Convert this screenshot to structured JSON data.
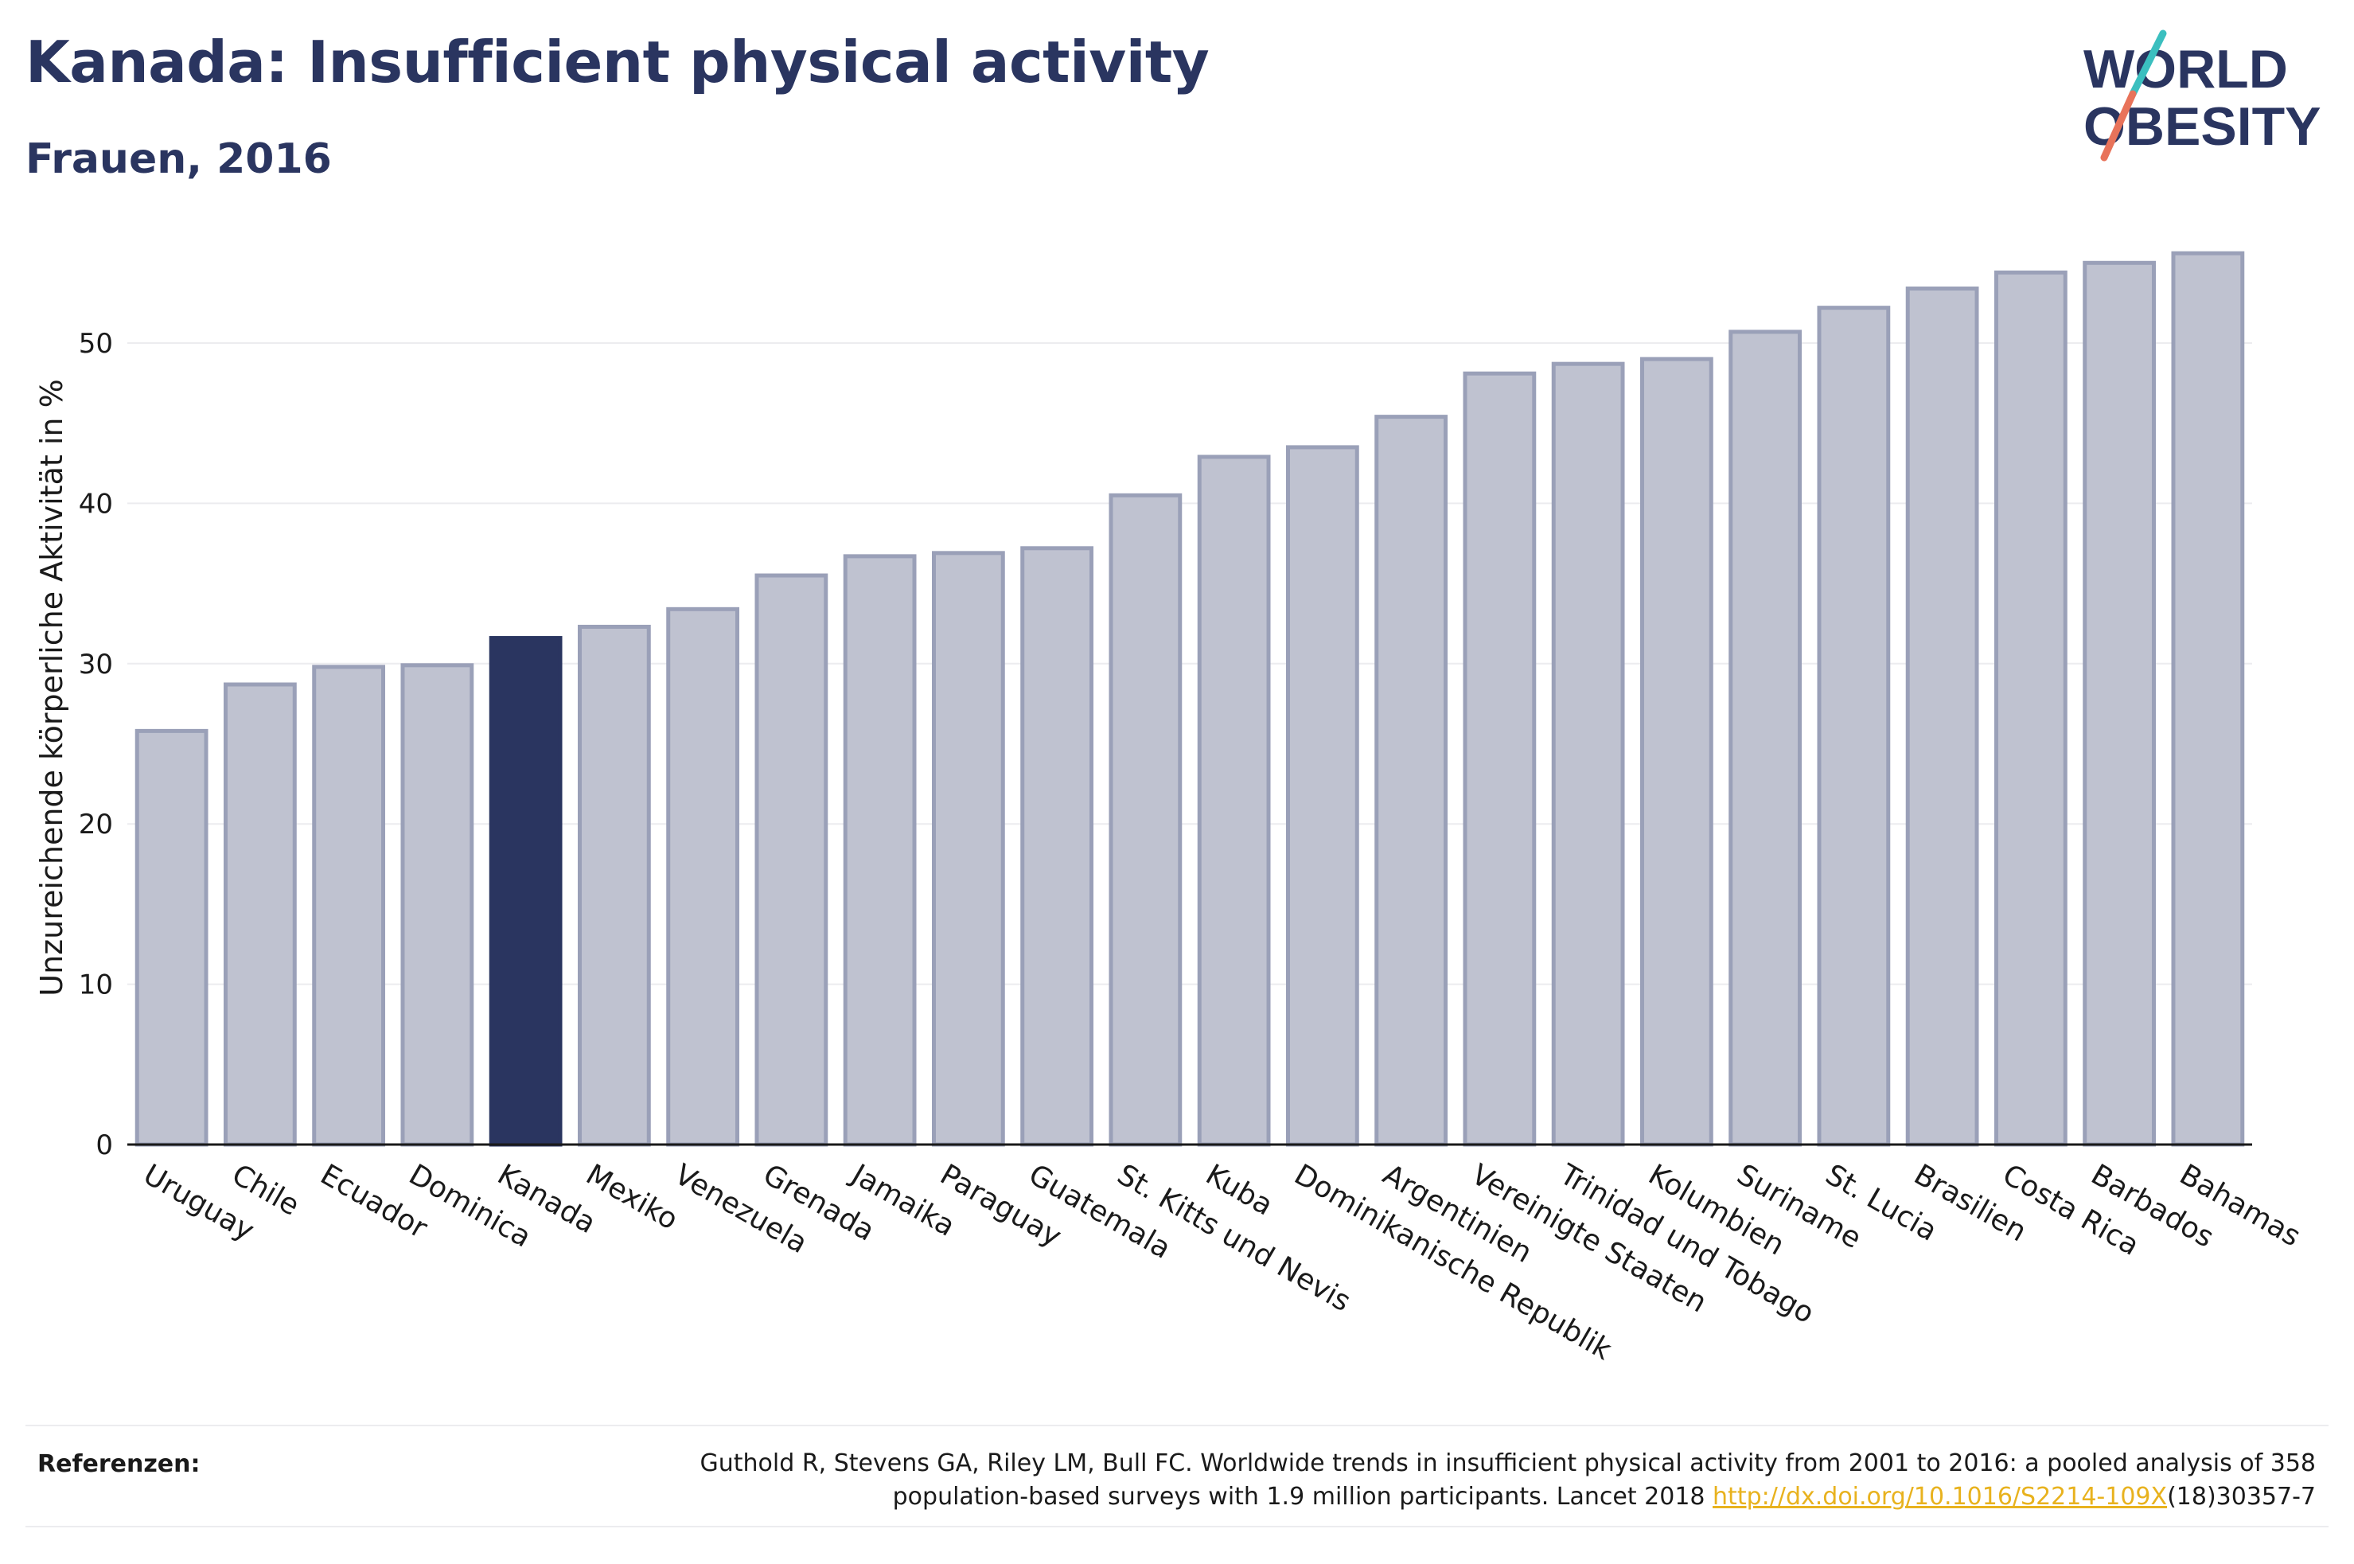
{
  "header": {
    "title": "Kanada: Insufficient physical activity",
    "subtitle": "Frauen, 2016"
  },
  "logo": {
    "line1": "WORLD",
    "line2": "OBESITY",
    "colors": {
      "text": "#2a3560",
      "slash_teal": "#3bbfbf",
      "slash_coral": "#e8735a"
    }
  },
  "chart_data": {
    "type": "bar",
    "ylabel": "Unzureichende körperliche Aktivität in %",
    "ylim": [
      0,
      57
    ],
    "yticks": [
      0,
      10,
      20,
      30,
      40,
      50
    ],
    "grid": true,
    "highlight": "Kanada",
    "colors": {
      "bar": "#bfc2d0",
      "bar_edge": "#9aa0b8",
      "highlight": "#2a3560"
    },
    "categories": [
      "Uruguay",
      "Chile",
      "Ecuador",
      "Dominica",
      "Kanada",
      "Mexiko",
      "Venezuela",
      "Grenada",
      "Jamaika",
      "Paraguay",
      "Guatemala",
      "St. Kitts und Nevis",
      "Kuba",
      "Dominikanische Republik",
      "Argentinien",
      "Vereinigte Staaten",
      "Trinidad und Tobago",
      "Kolumbien",
      "Suriname",
      "St. Lucia",
      "Brasilien",
      "Costa Rica",
      "Barbados",
      "Bahamas"
    ],
    "values": [
      25.8,
      28.7,
      29.8,
      29.9,
      31.6,
      32.3,
      33.4,
      35.5,
      36.7,
      36.9,
      37.2,
      40.5,
      42.9,
      43.5,
      45.4,
      48.1,
      48.7,
      49.0,
      50.7,
      52.2,
      53.4,
      54.4,
      55.0,
      55.6
    ]
  },
  "references": {
    "label": "Referenzen:",
    "text_line1": "Guthold R, Stevens GA, Riley LM, Bull FC. Worldwide trends in insufficient physical activity from 2001 to 2016: a pooled analysis of 358",
    "text_line2": "population-based surveys with 1.9 million participants. Lancet 2018",
    "link": "http://dx.doi.org/10.1016/S2214-109X",
    "suffix": "(18)30357-7"
  }
}
